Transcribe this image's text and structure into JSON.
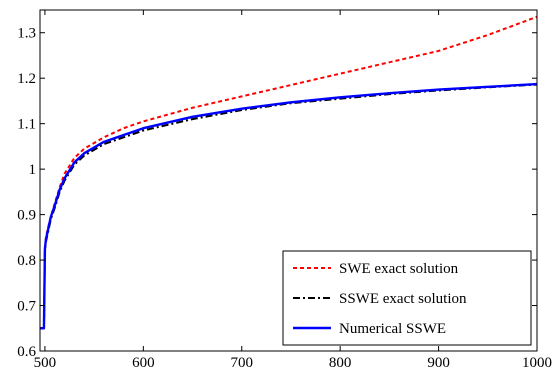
{
  "chart_data": {
    "type": "line",
    "title": "",
    "xlabel": "",
    "ylabel": "",
    "xlim": [
      495,
      1000
    ],
    "ylim": [
      0.6,
      1.35
    ],
    "xticks": [
      500,
      600,
      700,
      800,
      900,
      1000
    ],
    "xtick_labels": [
      "500",
      "600",
      "700",
      "800",
      "900",
      "1000"
    ],
    "yticks": [
      0.6,
      0.7,
      0.8,
      0.9,
      1.0,
      1.1,
      1.2,
      1.3
    ],
    "ytick_labels": [
      "0.6",
      "0.7",
      "0.8",
      "0.9",
      "1",
      "1.1",
      "1.2",
      "1.3"
    ],
    "grid": false,
    "legend_position": "bottom-right",
    "series": [
      {
        "name": "SWE exact solution",
        "color": "#ff0000",
        "style": "dotted",
        "x": [
          495,
          499,
          500,
          501,
          503,
          506,
          510,
          515,
          520,
          530,
          540,
          560,
          580,
          600,
          650,
          700,
          750,
          800,
          850,
          900,
          950,
          1000
        ],
        "y": [
          0.65,
          0.65,
          0.82,
          0.85,
          0.87,
          0.895,
          0.925,
          0.96,
          0.99,
          1.025,
          1.045,
          1.07,
          1.09,
          1.105,
          1.135,
          1.16,
          1.185,
          1.21,
          1.235,
          1.26,
          1.295,
          1.335
        ]
      },
      {
        "name": "SSWE exact solution",
        "color": "#000000",
        "style": "dashdot",
        "x": [
          495,
          499,
          500,
          501,
          503,
          506,
          510,
          515,
          520,
          530,
          540,
          560,
          580,
          600,
          650,
          700,
          750,
          800,
          850,
          900,
          950,
          1000
        ],
        "y": [
          0.65,
          0.65,
          0.82,
          0.84,
          0.86,
          0.89,
          0.915,
          0.95,
          0.975,
          1.01,
          1.03,
          1.055,
          1.07,
          1.085,
          1.11,
          1.13,
          1.145,
          1.155,
          1.165,
          1.173,
          1.18,
          1.186
        ]
      },
      {
        "name": "Numerical SSWE",
        "color": "#0000ff",
        "style": "solid",
        "x": [
          495,
          499,
          500,
          501,
          503,
          506,
          510,
          515,
          520,
          530,
          540,
          560,
          580,
          600,
          650,
          700,
          750,
          800,
          850,
          900,
          950,
          1000
        ],
        "y": [
          0.65,
          0.65,
          0.825,
          0.845,
          0.865,
          0.895,
          0.92,
          0.955,
          0.98,
          1.015,
          1.035,
          1.06,
          1.075,
          1.09,
          1.115,
          1.133,
          1.147,
          1.158,
          1.167,
          1.175,
          1.181,
          1.187
        ]
      }
    ]
  }
}
